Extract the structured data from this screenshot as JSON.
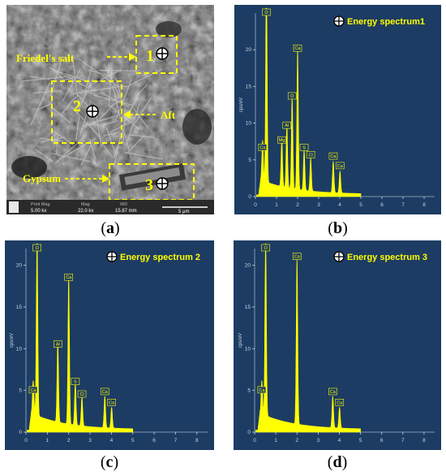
{
  "figure": {
    "panels": {
      "a": {
        "caption_letter": "a",
        "annotations": {
          "friedels_salt": "Friedel's salt",
          "aft": "Aft",
          "gypsum": "Gypsum"
        },
        "region_labels": [
          "1",
          "2",
          "3"
        ],
        "databar": {
          "header_1": "Print Mag",
          "header_2": "Mag",
          "header_3": "WD",
          "value_1": "5.00 kx",
          "value_2": "22.0 kx",
          "value_3": "15.87 mm",
          "scale": "5 μm"
        }
      },
      "b": {
        "caption_letter": "b",
        "title": "Energy spectrum1"
      },
      "c": {
        "caption_letter": "c",
        "title": "Energy spectrum  2"
      },
      "d": {
        "caption_letter": "d",
        "title": "Energy spectrum  3"
      }
    }
  },
  "chart_data": [
    {
      "type": "line",
      "panel": "b",
      "title": "Energy spectrum1",
      "ylabel": "cps/eV",
      "xlim": [
        0,
        8.5
      ],
      "ylim": [
        0,
        25
      ],
      "xticks": [
        0,
        1,
        2,
        3,
        4,
        5,
        6,
        7,
        8
      ],
      "yticks": [
        0,
        5,
        10,
        15,
        20
      ],
      "fill_color": "#ffff00",
      "background": "#1d3c63",
      "peaks": [
        {
          "label": "Ca",
          "x": 0.34,
          "y": 5.5
        },
        {
          "label": "O",
          "x": 0.52,
          "y": 28
        },
        {
          "label": "Mg",
          "x": 1.25,
          "y": 6.5
        },
        {
          "label": "Al",
          "x": 1.49,
          "y": 8.5
        },
        {
          "label": "O",
          "x": 1.74,
          "y": 12.5
        },
        {
          "label": "Ca",
          "x": 2.0,
          "y": 19
        },
        {
          "label": "S",
          "x": 2.31,
          "y": 5.5
        },
        {
          "label": "Cl",
          "x": 2.62,
          "y": 4.5
        },
        {
          "label": "Ca",
          "x": 3.69,
          "y": 4.3
        },
        {
          "label": "Ca",
          "x": 4.01,
          "y": 3.0
        }
      ]
    },
    {
      "type": "line",
      "panel": "c",
      "title": "Energy spectrum  2",
      "ylabel": "cps/eV",
      "xlim": [
        0,
        8.5
      ],
      "ylim": [
        0,
        22
      ],
      "xticks": [
        0,
        1,
        2,
        3,
        4,
        5,
        6,
        7,
        8
      ],
      "yticks": [
        0,
        5,
        10,
        15,
        20
      ],
      "fill_color": "#ffff00",
      "background": "#1d3c63",
      "peaks": [
        {
          "label": "Ca",
          "x": 0.34,
          "y": 4.0
        },
        {
          "label": "O",
          "x": 0.52,
          "y": 21.5
        },
        {
          "label": "Al",
          "x": 1.49,
          "y": 9.5
        },
        {
          "label": "Ca",
          "x": 2.0,
          "y": 17.5
        },
        {
          "label": "S",
          "x": 2.31,
          "y": 5.0
        },
        {
          "label": "Cl",
          "x": 2.62,
          "y": 3.5
        },
        {
          "label": "Ca",
          "x": 3.69,
          "y": 3.8
        },
        {
          "label": "Ca",
          "x": 4.01,
          "y": 2.5
        }
      ]
    },
    {
      "type": "line",
      "panel": "d",
      "title": "Energy spectrum  3",
      "ylabel": "cps/eV",
      "xlim": [
        0,
        8.5
      ],
      "ylim": [
        0,
        22
      ],
      "xticks": [
        0,
        1,
        2,
        3,
        4,
        5,
        6,
        7,
        8
      ],
      "yticks": [
        0,
        5,
        10,
        15,
        20
      ],
      "fill_color": "#ffff00",
      "background": "#1d3c63",
      "peaks": [
        {
          "label": "Ca",
          "x": 0.34,
          "y": 4.0
        },
        {
          "label": "O",
          "x": 0.52,
          "y": 21.5
        },
        {
          "label": "Ca",
          "x": 2.0,
          "y": 20.0
        },
        {
          "label": "Ca",
          "x": 3.69,
          "y": 3.8
        },
        {
          "label": "Ca",
          "x": 4.01,
          "y": 2.5
        }
      ]
    }
  ]
}
